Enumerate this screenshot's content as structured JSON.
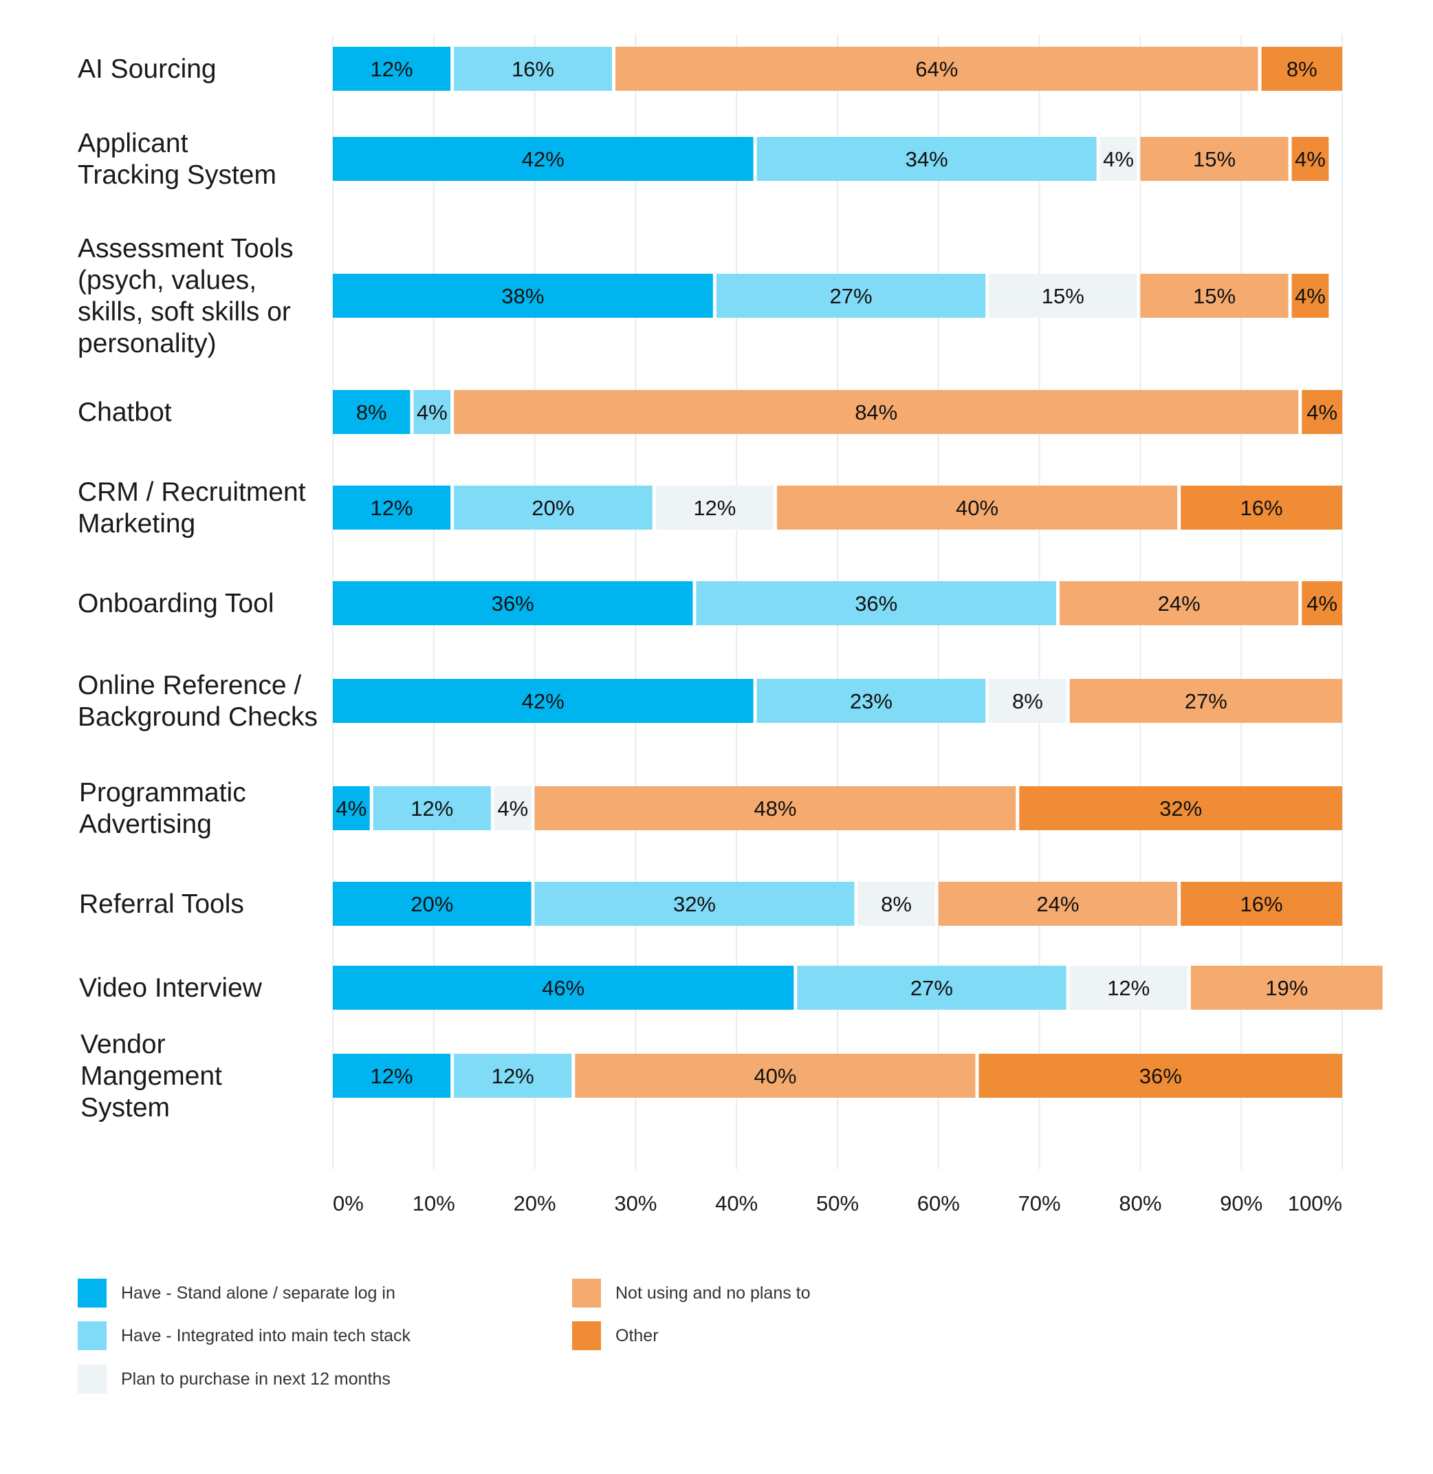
{
  "chart_data": {
    "type": "bar",
    "orientation": "horizontal",
    "stacked": true,
    "title": "",
    "xlabel": "",
    "ylabel": "",
    "xlim": [
      0,
      100
    ],
    "grid": true,
    "legend_position": "bottom",
    "categories": [
      [
        "AI Sourcing"
      ],
      [
        "Applicant",
        "Tracking System"
      ],
      [
        "Assessment Tools",
        "(psych, values,",
        "skills, soft skills or",
        "personality)"
      ],
      [
        "Chatbot"
      ],
      [
        "CRM / Recruitment",
        "Marketing"
      ],
      [
        "Onboarding Tool"
      ],
      [
        "Online Reference /",
        "Background Checks"
      ],
      [
        "Programmatic",
        "Advertising"
      ],
      [
        "Referral Tools"
      ],
      [
        "Video Interview"
      ],
      [
        "Vendor",
        "Mangement",
        "System"
      ]
    ],
    "series": [
      {
        "name": "Have - Stand alone / separate log in",
        "color": "#00b5ef",
        "values": [
          12,
          42,
          38,
          8,
          12,
          36,
          42,
          4,
          20,
          46,
          12
        ]
      },
      {
        "name": "Have - Integrated into main tech stack",
        "color": "#80dbf6",
        "values": [
          16,
          34,
          27,
          4,
          20,
          36,
          23,
          12,
          32,
          27,
          12
        ]
      },
      {
        "name": "Plan to purchase in next 12 months",
        "color": "#eef3f5",
        "values": [
          0,
          4,
          15,
          0,
          12,
          0,
          8,
          4,
          8,
          12,
          0
        ]
      },
      {
        "name": "Not using and no plans to",
        "color": "#f5ab70",
        "values": [
          64,
          15,
          15,
          84,
          40,
          24,
          27,
          48,
          24,
          19,
          40
        ]
      },
      {
        "name": "Other",
        "color": "#f08c35",
        "values": [
          8,
          4,
          4,
          4,
          16,
          4,
          0,
          32,
          16,
          0,
          36
        ]
      }
    ],
    "tick_labels": [
      "0%",
      "10%",
      "20%",
      "30%",
      "40%",
      "50%",
      "60%",
      "70%",
      "80%",
      "90%",
      "100%"
    ]
  }
}
